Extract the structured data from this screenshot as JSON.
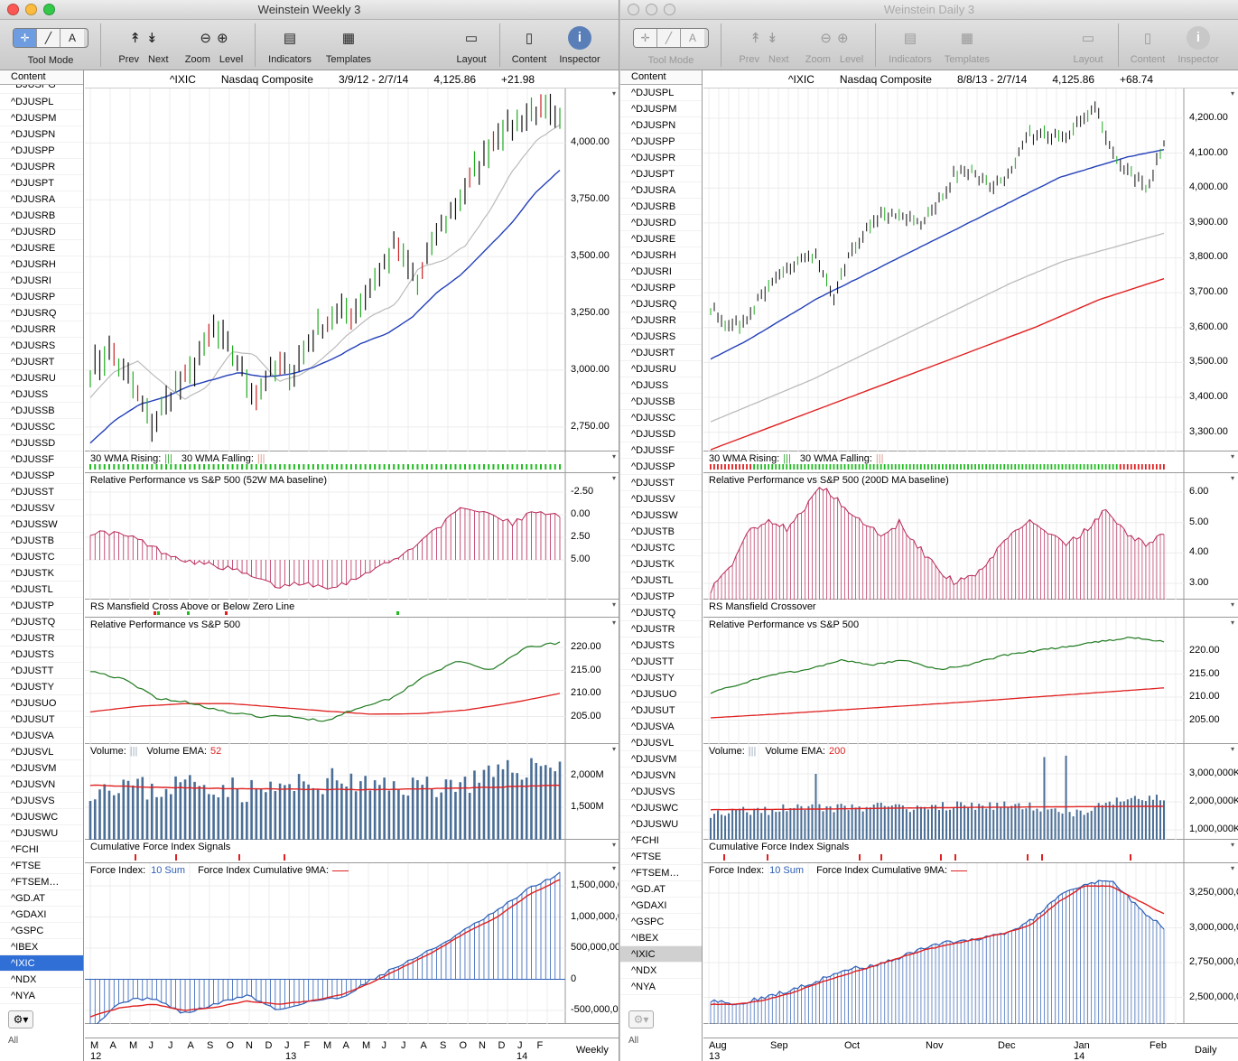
{
  "colors": {
    "price": "#0a6b0a",
    "ma30": "#2440b8",
    "ma_light": "#bbbbbb",
    "ma_red": "#e02020",
    "rp_green": "#1f7a1f",
    "rs_bar": "#b8285a",
    "vol": "#4a6e96",
    "fi_blue": "#2d5fb6",
    "rising": "#22bb22",
    "falling": "#e02020"
  },
  "left": {
    "window_title": "Weinstein Weekly 3",
    "toolbar": {
      "tool_mode": "Tool Mode",
      "prev": "Prev",
      "next": "Next",
      "zoom": "Zoom",
      "level": "Level",
      "indicators": "Indicators",
      "templates": "Templates",
      "layout": "Layout",
      "content": "Content",
      "inspector": "Inspector"
    },
    "sidebar": {
      "header": "Content",
      "items": [
        "^DJUSPL",
        "^DJUSPM",
        "^DJUSPN",
        "^DJUSPP",
        "^DJUSPR",
        "^DJUSPT",
        "^DJUSRA",
        "^DJUSRB",
        "^DJUSRD",
        "^DJUSRE",
        "^DJUSRH",
        "^DJUSRI",
        "^DJUSRP",
        "^DJUSRQ",
        "^DJUSRR",
        "^DJUSRS",
        "^DJUSRT",
        "^DJUSRU",
        "^DJUSS",
        "^DJUSSB",
        "^DJUSSC",
        "^DJUSSD",
        "^DJUSSF",
        "^DJUSSP",
        "^DJUSST",
        "^DJUSSV",
        "^DJUSSW",
        "^DJUSTB",
        "^DJUSTC",
        "^DJUSTK",
        "^DJUSTL",
        "^DJUSTP",
        "^DJUSTQ",
        "^DJUSTR",
        "^DJUSTS",
        "^DJUSTT",
        "^DJUSTY",
        "^DJUSUO",
        "^DJUSUT",
        "^DJUSVA",
        "^DJUSVL",
        "^DJUSVM",
        "^DJUSVN",
        "^DJUSVS",
        "^DJUSWC",
        "^DJUSWU",
        "^FCHI",
        "^FTSE",
        "^FTSEM…",
        "^GD.AT",
        "^GDAXI",
        "^GSPC",
        "^IBEX",
        "^IXIC",
        "^NDX",
        "^NYA"
      ],
      "selected": "^IXIC",
      "all": "All"
    },
    "header": {
      "symbol": "^IXIC",
      "name": "Nasdaq Composite",
      "range": "3/9/12 - 2/7/14",
      "last": "4,125.86",
      "change": "+21.98"
    },
    "panes": {
      "price_ticks": [
        "4,000.00",
        "3,750.00",
        "3,500.00",
        "3,250.00",
        "3,000.00",
        "2,750.00"
      ],
      "wma_label_rising": "30 WMA Rising:",
      "wma_label_falling": "30 WMA Falling:",
      "wma_glyph": "|||",
      "rp_ma_title": "Relative Performance vs S&P 500 (52W MA baseline)",
      "rp_ma_ticks": [
        "5.00",
        "2.50",
        "0.00",
        "-2.50"
      ],
      "rs_title": "RS Mansfield Cross Above or Below Zero Line",
      "rp_title": "Relative Performance vs S&P 500",
      "rp_ticks": [
        "220.00",
        "215.00",
        "210.00",
        "205.00"
      ],
      "vol_label": "Volume:",
      "vol_glyph": "|||",
      "vol_ema_label": "Volume EMA:",
      "vol_ema_value": "52",
      "vol_ticks": [
        "2,000M",
        "1,500M"
      ],
      "cfi_title": "Cumulative Force Index Signals",
      "fi_label": "Force Index:",
      "fi_sum": "10 Sum",
      "fi_cum_label": "Force Index Cumulative 9MA:",
      "fi_ticks": [
        "1,500,000,0",
        "1,000,000,0",
        "500,000,00",
        "0",
        "-500,000,00"
      ]
    },
    "xaxis": {
      "months": [
        "M",
        "A",
        "M",
        "J",
        "J",
        "A",
        "S",
        "O",
        "N",
        "D",
        "J",
        "F",
        "M",
        "A",
        "M",
        "J",
        "J",
        "A",
        "S",
        "O",
        "N",
        "D",
        "J",
        "F"
      ],
      "years": [
        "12",
        "13",
        "14"
      ],
      "period": "Weekly"
    }
  },
  "right": {
    "window_title": "Weinstein Daily 3",
    "toolbar": {
      "tool_mode": "Tool Mode",
      "prev": "Prev",
      "next": "Next",
      "zoom": "Zoom",
      "level": "Level",
      "indicators": "Indicators",
      "templates": "Templates",
      "layout": "Layout",
      "content": "Content",
      "inspector": "Inspector"
    },
    "sidebar": {
      "header": "Content",
      "items": [
        "^DJUSPL",
        "^DJUSPM",
        "^DJUSPN",
        "^DJUSPP",
        "^DJUSPR",
        "^DJUSPT",
        "^DJUSRA",
        "^DJUSRB",
        "^DJUSRD",
        "^DJUSRE",
        "^DJUSRH",
        "^DJUSRI",
        "^DJUSRP",
        "^DJUSRQ",
        "^DJUSRR",
        "^DJUSRS",
        "^DJUSRT",
        "^DJUSRU",
        "^DJUSS",
        "^DJUSSB",
        "^DJUSSC",
        "^DJUSSD",
        "^DJUSSF",
        "^DJUSSP",
        "^DJUSST",
        "^DJUSSV",
        "^DJUSSW",
        "^DJUSTB",
        "^DJUSTC",
        "^DJUSTK",
        "^DJUSTL",
        "^DJUSTP",
        "^DJUSTQ",
        "^DJUSTR",
        "^DJUSTS",
        "^DJUSTT",
        "^DJUSTY",
        "^DJUSUO",
        "^DJUSUT",
        "^DJUSVA",
        "^DJUSVL",
        "^DJUSVM",
        "^DJUSVN",
        "^DJUSVS",
        "^DJUSWC",
        "^DJUSWU",
        "^FCHI",
        "^FTSE",
        "^FTSEM…",
        "^GD.AT",
        "^GDAXI",
        "^GSPC",
        "^IBEX",
        "^IXIC",
        "^NDX",
        "^NYA"
      ],
      "selected": "^IXIC",
      "all": "All"
    },
    "header": {
      "symbol": "^IXIC",
      "name": "Nasdaq Composite",
      "range": "8/8/13 - 2/7/14",
      "last": "4,125.86",
      "change": "+68.74"
    },
    "panes": {
      "price_ticks": [
        "4,200.00",
        "4,100.00",
        "4,000.00",
        "3,900.00",
        "3,800.00",
        "3,700.00",
        "3,600.00",
        "3,500.00",
        "3,400.00",
        "3,300.00"
      ],
      "wma_label_rising": "30 WMA Rising:",
      "wma_label_falling": "30 WMA Falling:",
      "wma_glyph": "|||",
      "rp_ma_title": "Relative Performance vs S&P 500 (200D MA baseline)",
      "rp_ma_ticks": [
        "6.00",
        "5.00",
        "4.00",
        "3.00"
      ],
      "rs_title": "RS Mansfield Crossover",
      "rp_title": "Relative Performance vs S&P 500",
      "rp_ticks": [
        "220.00",
        "215.00",
        "210.00",
        "205.00"
      ],
      "vol_label": "Volume:",
      "vol_glyph": "|||",
      "vol_ema_label": "Volume EMA:",
      "vol_ema_value": "200",
      "vol_ticks": [
        "3,000,000K",
        "2,000,000K",
        "1,000,000K"
      ],
      "cfi_title": "Cumulative Force Index Signals",
      "fi_label": "Force Index:",
      "fi_sum": "10 Sum",
      "fi_cum_label": "Force Index Cumulative 9MA:",
      "fi_ticks": [
        "3,250,000,0",
        "3,000,000,0",
        "2,750,000,0",
        "2,500,000,0"
      ]
    },
    "xaxis": {
      "months": [
        "Aug",
        "Sep",
        "Oct",
        "Nov",
        "Dec",
        "Jan",
        "Feb"
      ],
      "years": [
        "13",
        "14"
      ],
      "period": "Daily"
    }
  },
  "chart_data": [
    {
      "type": "line",
      "title": "^IXIC Nasdaq Composite (Weekly)",
      "x": [
        "2012-03",
        "2012-05",
        "2012-06",
        "2012-08",
        "2012-09",
        "2012-11",
        "2013-01",
        "2013-03",
        "2013-05",
        "2013-07",
        "2013-09",
        "2013-10",
        "2013-12",
        "2014-01",
        "2014-02"
      ],
      "series": [
        {
          "name": "^IXIC",
          "values": [
            3050,
            2950,
            2780,
            3000,
            3150,
            2880,
            3120,
            3240,
            3400,
            3600,
            3700,
            3900,
            4050,
            4150,
            4125.86
          ]
        }
      ],
      "ylim": [
        2650,
        4200
      ]
    },
    {
      "type": "line",
      "title": "^IXIC Nasdaq Composite (Daily)",
      "x": [
        "2013-08",
        "2013-09",
        "2013-10",
        "2013-11",
        "2013-12",
        "2014-01",
        "2014-02"
      ],
      "series": [
        {
          "name": "^IXIC",
          "values": [
            3650,
            3620,
            3800,
            3920,
            4050,
            4200,
            4125.86
          ]
        }
      ],
      "ylim": [
        3250,
        4280
      ]
    }
  ]
}
